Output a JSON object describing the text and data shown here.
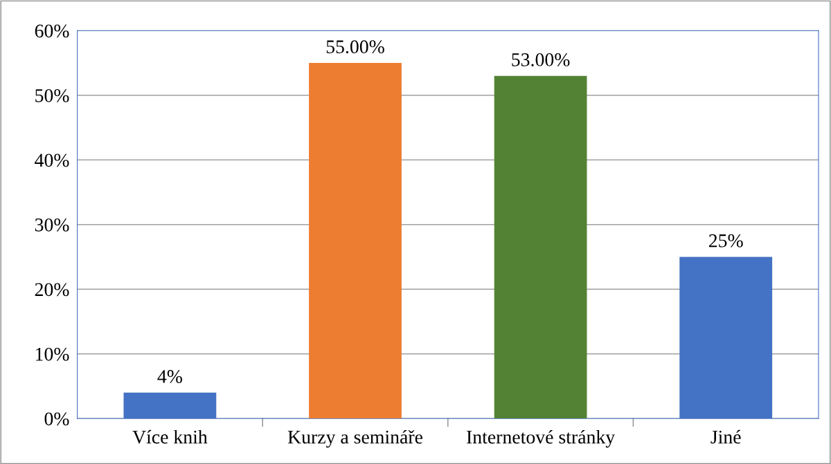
{
  "chart_data": {
    "type": "bar",
    "categories": [
      "Více knih",
      "Kurzy a semináře",
      "Internetové stránky",
      "Jiné"
    ],
    "values": [
      4,
      55,
      53,
      25
    ],
    "colors": [
      "#4472c4",
      "#ed7d31",
      "#548235",
      "#4472c4"
    ],
    "value_labels": [
      "4%",
      "55.00%",
      "53.00%",
      "25%"
    ],
    "ylim": [
      0,
      60
    ],
    "yticks": [
      {
        "value": 0,
        "label": "0%"
      },
      {
        "value": 10,
        "label": "10%"
      },
      {
        "value": 20,
        "label": "20%"
      },
      {
        "value": 30,
        "label": "30%"
      },
      {
        "value": 40,
        "label": "40%"
      },
      {
        "value": 50,
        "label": "50%"
      },
      {
        "value": 60,
        "label": "60%"
      }
    ],
    "grid": "y",
    "legend": false
  }
}
